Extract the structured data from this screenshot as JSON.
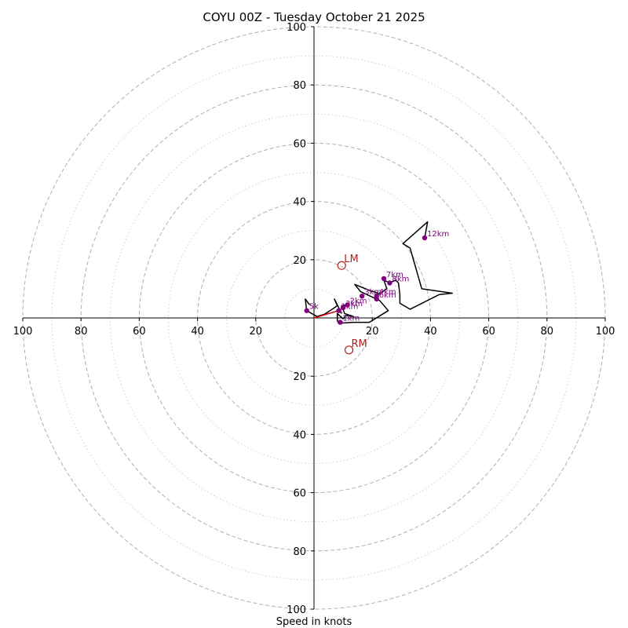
{
  "chart_data": {
    "type": "hodograph",
    "title": "COYU 00Z - Tuesday October 21 2025",
    "xlabel": "Speed in knots",
    "range": [
      -100,
      100
    ],
    "rings_major": [
      20,
      40,
      60,
      80,
      100
    ],
    "rings_minor": [
      10,
      30,
      50,
      70,
      90
    ],
    "tick_labels": [
      "100",
      "80",
      "60",
      "40",
      "20",
      "20",
      "40",
      "60",
      "80",
      "100"
    ],
    "y_tick_labels": [
      "100",
      "80",
      "60",
      "40",
      "20",
      "20",
      "40",
      "60",
      "80",
      "100"
    ],
    "hodograph_color": "#000000",
    "lowlevel_color": "#cc0000",
    "lowlevel_line": [
      [
        0,
        0
      ],
      [
        8.5,
        2.5
      ],
      [
        11.5,
        4.5
      ]
    ],
    "hodograph_line": [
      [
        11.5,
        4.5
      ],
      [
        9.5,
        4.2
      ],
      [
        10.5,
        1.5
      ],
      [
        13.5,
        0.5
      ],
      [
        11,
        0.8
      ],
      [
        10,
        -0.3
      ],
      [
        8,
        1.5
      ],
      [
        8,
        -1
      ],
      [
        8.5,
        -1.8
      ],
      [
        13.5,
        -1.5
      ],
      [
        19,
        -1.5
      ],
      [
        25.5,
        2.5
      ],
      [
        22.5,
        6
      ],
      [
        16,
        9
      ],
      [
        14,
        11.5
      ],
      [
        19,
        9.5
      ],
      [
        22,
        8.5
      ],
      [
        21.5,
        6.5
      ],
      [
        22,
        8
      ],
      [
        25,
        10
      ],
      [
        24,
        13
      ],
      [
        26,
        12
      ],
      [
        28,
        13
      ],
      [
        29,
        12
      ],
      [
        29.5,
        8
      ],
      [
        29.5,
        5
      ],
      [
        33,
        3
      ],
      [
        43,
        8
      ],
      [
        47.5,
        8.5
      ],
      [
        37,
        10
      ],
      [
        33,
        24
      ],
      [
        30.5,
        25.5
      ],
      [
        39,
        33
      ],
      [
        38,
        27.5
      ]
    ],
    "black_line_extra": [
      [
        9.5,
        1.5
      ],
      [
        7,
        6.5
      ],
      [
        8,
        4.2
      ],
      [
        7,
        3.5
      ],
      [
        5.5,
        2.5
      ],
      [
        3.5,
        1.2
      ],
      [
        1,
        0.5
      ],
      [
        -2.5,
        2.5
      ],
      [
        -3,
        6.5
      ],
      [
        -1.5,
        4.5
      ]
    ],
    "points": [
      {
        "label": "5k",
        "x": -2.5,
        "y": 2.5
      },
      {
        "label": "1km",
        "x": 8.5,
        "y": 2.5
      },
      {
        "label": "2km",
        "x": 11.5,
        "y": 4.5
      },
      {
        "label": "3km",
        "x": 10,
        "y": 3.5
      },
      {
        "label": "1km",
        "x": 9,
        "y": -1.5
      },
      {
        "label": "3km",
        "x": 16.5,
        "y": 7.5
      },
      {
        "label": "4km",
        "x": 21.5,
        "y": 7.5
      },
      {
        "label": "6km",
        "x": 21.5,
        "y": 6.5
      },
      {
        "label": "7km",
        "x": 24,
        "y": 13.5
      },
      {
        "label": "8km",
        "x": 26,
        "y": 12
      },
      {
        "label": "12km",
        "x": 38,
        "y": 27.5
      }
    ],
    "motions": [
      {
        "label": "LM",
        "x": 9.5,
        "y": 18
      },
      {
        "label": "RM",
        "x": 12,
        "y": -11
      }
    ],
    "colors": {
      "point": "#800080",
      "motion": "#b22222",
      "grid": "#b0b0b0",
      "axis": "#000000"
    }
  }
}
